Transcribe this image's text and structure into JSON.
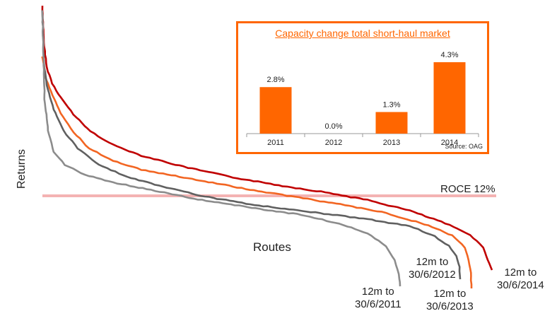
{
  "chart_data": [
    {
      "type": "line",
      "xlabel": "Routes",
      "ylabel": "Returns",
      "reference_line": {
        "label": "ROCE 12%",
        "color": "#F4B3B3"
      },
      "series": [
        {
          "name": "12m to 30/6/2014",
          "color": "#C00000"
        },
        {
          "name": "12m to 30/6/2013",
          "color": "#F26522"
        },
        {
          "name": "12m to 30/6/2012",
          "color": "#606060"
        },
        {
          "name": "12m to 30/6/2011",
          "color": "#8C8C8C"
        }
      ]
    },
    {
      "type": "bar",
      "title": "Capacity change total short-haul market",
      "categories": [
        "2011",
        "2012",
        "2013",
        "2014"
      ],
      "values": [
        2.8,
        0.0,
        1.3,
        4.3
      ],
      "value_labels": [
        "2.8%",
        "0.0%",
        "1.3%",
        "4.3%"
      ],
      "source": "Source: OAG",
      "bar_color": "#FF6600"
    }
  ],
  "labels": {
    "s2014_l1": "12m to",
    "s2014_l2": "30/6/2014",
    "s2013_l1": "12m to",
    "s2013_l2": "30/6/2013",
    "s2012_l1": "12m to",
    "s2012_l2": "30/6/2012",
    "s2011_l1": "12m to",
    "s2011_l2": "30/6/2011"
  }
}
